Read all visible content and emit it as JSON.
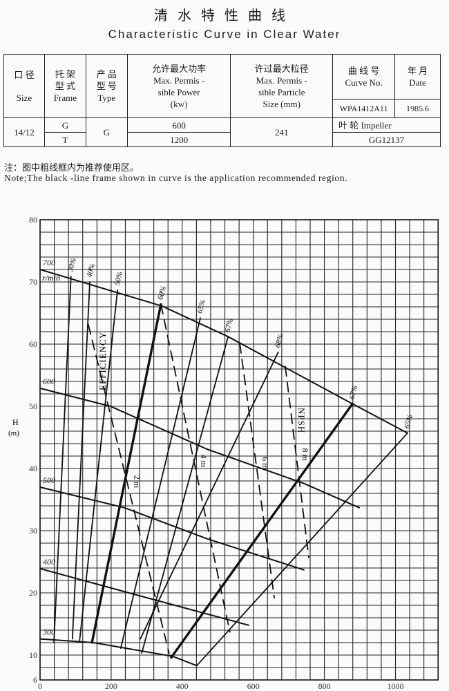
{
  "header": {
    "title_cn": "清水特性曲线",
    "title_en": "Characteristic Curve in Clear Water"
  },
  "spec_table": {
    "headers": {
      "size": [
        "口  径",
        "Size"
      ],
      "frame": [
        "托  架",
        "型  式",
        "Frame"
      ],
      "type": [
        "产  品",
        "型  号",
        "Type"
      ],
      "power": [
        "允许最大功率",
        "Max. Permis -",
        "sible Power",
        "(kw)"
      ],
      "particle": [
        "许过最大粒径",
        "Max. Permis -",
        "sible Particle",
        "Size  (mm)"
      ],
      "curve_no": [
        "曲  线  号",
        "Curve No."
      ],
      "date": [
        "年  月",
        "Date"
      ]
    },
    "curve_no_value": "WPA1412A11",
    "date_value": "1985.6",
    "size_value": "14/12",
    "frames": [
      "G",
      "T"
    ],
    "type_value": "G",
    "powers": [
      "600",
      "1200"
    ],
    "particle_value": "241",
    "impeller_label": "叶  轮  Impeller",
    "impeller_value": "GG12137"
  },
  "notes": {
    "cn": "注：图中粗线框内为推荐使用区。",
    "en": "Note;The black -line frame shown in curve is the application recommended region."
  },
  "chart_data": {
    "type": "line",
    "xlabel": "",
    "ylabel": "H\n(m)",
    "xlim": [
      0,
      1120
    ],
    "ylim": [
      6,
      80
    ],
    "xticks": [
      0,
      200,
      400,
      600,
      800,
      1000
    ],
    "yticks": [
      6,
      10,
      20,
      30,
      40,
      50,
      60,
      70,
      80
    ],
    "grid": true,
    "speed_unit": "r/min",
    "speed_curves": [
      {
        "name": "700",
        "points": [
          [
            0,
            72
          ],
          [
            344,
            66.1
          ],
          [
            529,
            61.2
          ],
          [
            879,
            50.4
          ],
          [
            1034,
            45.7
          ]
        ]
      },
      {
        "name": "600",
        "points": [
          [
            0,
            52.9
          ],
          [
            198,
            50
          ],
          [
            470,
            43.1
          ],
          [
            742,
            37.6
          ],
          [
            898,
            33.7
          ]
        ]
      },
      {
        "name": "500",
        "points": [
          [
            0,
            37
          ],
          [
            237,
            33.7
          ],
          [
            470,
            28.7
          ],
          [
            742,
            23.7
          ]
        ]
      },
      {
        "name": "400",
        "points": [
          [
            0,
            23.9
          ],
          [
            276,
            19.6
          ],
          [
            587,
            14.8
          ]
        ]
      },
      {
        "name": "300",
        "points": [
          [
            0,
            12.6
          ],
          [
            150,
            12
          ],
          [
            373,
            9.8
          ],
          [
            441,
            8.3
          ]
        ]
      }
    ],
    "efficiency_label": "EFFICIENCY",
    "efficiency_lines": [
      {
        "name": "30%",
        "points": [
          [
            87,
            70.9
          ],
          [
            39,
            12.0
          ]
        ],
        "bold": false
      },
      {
        "name": "40%",
        "points": [
          [
            140,
            70
          ],
          [
            91,
            12.6
          ]
        ],
        "bold": false
      },
      {
        "name": "50%",
        "points": [
          [
            218,
            68.7
          ],
          [
            111,
            12.2
          ]
        ],
        "bold": false
      },
      {
        "name": "60%",
        "points": [
          [
            340,
            66.4
          ],
          [
            146,
            12
          ]
        ],
        "bold": true
      },
      {
        "name": "65%",
        "points": [
          [
            451,
            64.2
          ],
          [
            227,
            11.1
          ]
        ],
        "bold": false
      },
      {
        "name": "67%",
        "points": [
          [
            529,
            61.2
          ],
          [
            286,
            10.3
          ]
        ],
        "bold": false
      },
      {
        "name": "68%",
        "points": [
          [
            670,
            58.7
          ],
          [
            282,
            12.6
          ]
        ],
        "bold": false
      },
      {
        "name": "67%",
        "points": [
          [
            879,
            50.4
          ],
          [
            369,
            9.6
          ]
        ],
        "bold": true
      },
      {
        "name": "65%",
        "points": [
          [
            1034,
            45.7
          ],
          [
            441,
            8.3
          ]
        ],
        "bold": false
      }
    ],
    "npsh_label": "NPSH",
    "npsh_lines": [
      {
        "name": "2 m",
        "points": [
          [
            136,
            63.1
          ],
          [
            363,
            10.3
          ]
        ]
      },
      {
        "name": "4 m",
        "points": [
          [
            340,
            66.4
          ],
          [
            534,
            13.7
          ]
        ]
      },
      {
        "name": "6 m",
        "points": [
          [
            562,
            60.1
          ],
          [
            659,
            19.2
          ]
        ]
      },
      {
        "name": "8 m",
        "points": [
          [
            690,
            56.4
          ],
          [
            756,
            25.7
          ]
        ]
      }
    ]
  }
}
